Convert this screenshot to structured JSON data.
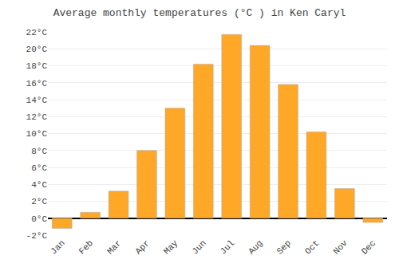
{
  "chart_data": {
    "type": "bar",
    "title": "Average monthly temperatures (°C ) in Ken Caryl",
    "categories": [
      "Jan",
      "Feb",
      "Mar",
      "Apr",
      "May",
      "Jun",
      "Jul",
      "Aug",
      "Sep",
      "Oct",
      "Nov",
      "Dec"
    ],
    "values": [
      -1.2,
      0.7,
      3.2,
      8.0,
      13.0,
      18.2,
      21.7,
      20.4,
      15.8,
      10.2,
      3.5,
      -0.5
    ],
    "color": "#FFA726",
    "ylim": [
      -2,
      22
    ],
    "yticks": [
      {
        "value": -2,
        "label": "-2°C"
      },
      {
        "value": 0,
        "label": "0°C"
      },
      {
        "value": 2,
        "label": "2°C"
      },
      {
        "value": 4,
        "label": "4°C"
      },
      {
        "value": 6,
        "label": "6°C"
      },
      {
        "value": 8,
        "label": "8°C"
      },
      {
        "value": 10,
        "label": "10°C"
      },
      {
        "value": 12,
        "label": "12°C"
      },
      {
        "value": 14,
        "label": "14°C"
      },
      {
        "value": 16,
        "label": "16°C"
      },
      {
        "value": 18,
        "label": "18°C"
      },
      {
        "value": 20,
        "label": "20°C"
      },
      {
        "value": 22,
        "label": "22°C"
      }
    ],
    "grid": true
  }
}
